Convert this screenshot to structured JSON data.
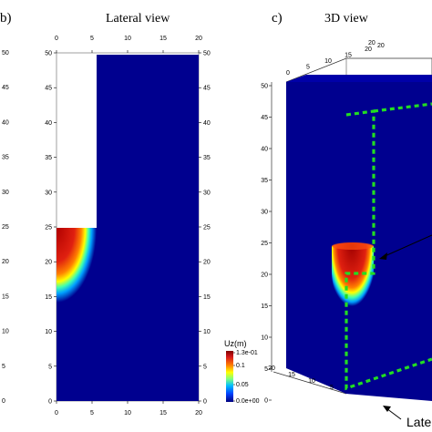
{
  "panel_b": {
    "letter": "b)",
    "title": "Lateral view",
    "top_ticks": [
      "0",
      "5",
      "10",
      "15",
      "20"
    ],
    "left_ticks": [
      "50",
      "45",
      "40",
      "35",
      "30",
      "25",
      "20",
      "15",
      "10",
      "5",
      "0"
    ],
    "right_ticks": [
      "50",
      "45",
      "40",
      "35",
      "30",
      "25",
      "20",
      "15",
      "10",
      "5",
      "0"
    ],
    "bottom_ticks": [
      "0",
      "5",
      "10",
      "15",
      "20"
    ]
  },
  "panel_a_partial": {
    "ticks": [
      "50",
      "45",
      "40",
      "35",
      "30",
      "25",
      "20",
      "15",
      "10",
      "5",
      "0"
    ]
  },
  "panel_c": {
    "letter": "c)",
    "title": "3D view",
    "top_ticks": [
      "0",
      "5",
      "10",
      "15",
      "20"
    ],
    "top_right_tick": "20",
    "left_ticks": [
      "50",
      "45",
      "40",
      "35",
      "30",
      "25",
      "20",
      "15",
      "10",
      "5",
      "0"
    ],
    "bottom_ticks": [
      "20",
      "15",
      "10",
      "5"
    ],
    "lateral_label": "Late"
  },
  "colorbar": {
    "title": "Uz(m)",
    "labels": [
      "1.3e-01",
      "0.1",
      "0.05",
      "0.0e+00"
    ],
    "stops": [
      "#7f0000",
      "#d7191c",
      "#ff7f00",
      "#ffff00",
      "#7fff7f",
      "#00bfff",
      "#0040ff",
      "#00007f"
    ]
  },
  "colors": {
    "domain": "#00008f",
    "dashed": "#22dd22"
  }
}
